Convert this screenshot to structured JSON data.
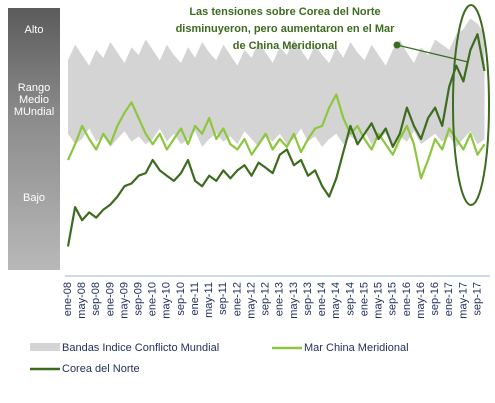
{
  "chart_data": {
    "type": "line",
    "annotation": [
      "Las tensiones sobre Corea del Norte",
      "disminuyeron, pero aumentaron en el Mar",
      "de  China Meridional"
    ],
    "zones": [
      "Alto",
      "Rango Medio MUndial",
      "Bajo"
    ],
    "categories": [
      "ene-08",
      null,
      "may-08",
      null,
      "sep-08",
      null,
      "ene-09",
      null,
      "may-09",
      null,
      "sep-09",
      null,
      "ene-10",
      null,
      "may-10",
      null,
      "sep-10",
      null,
      "ene-11",
      null,
      "may-11",
      null,
      "sep-11",
      null,
      "ene-12",
      null,
      "may-12",
      null,
      "sep-12",
      null,
      "ene-13",
      null,
      "may-13",
      null,
      "sep-13",
      null,
      "ene-14",
      null,
      "may-14",
      null,
      "sep-14",
      null,
      "ene-15",
      null,
      "may-15",
      null,
      "sep-15",
      null,
      "ene-16",
      null,
      "may-16",
      null,
      "sep-16",
      null,
      "ene-17",
      null,
      "may-17",
      null,
      "sep-17",
      null
    ],
    "ylim": [
      0,
      100
    ],
    "band": {
      "name": "Bandas Indice Conflicto Mundial",
      "color": "#d4d4d4",
      "low": [
        52,
        48,
        50,
        54,
        49,
        51,
        47,
        50,
        53,
        49,
        51,
        48,
        50,
        54,
        49,
        52,
        48,
        50,
        53,
        47,
        50,
        52,
        49,
        51,
        48,
        53,
        50,
        47,
        51,
        49,
        52,
        48,
        50,
        54,
        49,
        51,
        47,
        50,
        52,
        48,
        51,
        49,
        53,
        48,
        50,
        52,
        47,
        51,
        49,
        53,
        48,
        50,
        52,
        49,
        51,
        47,
        50,
        53,
        48,
        50
      ],
      "high": [
        80,
        86,
        82,
        78,
        84,
        81,
        87,
        83,
        79,
        85,
        82,
        88,
        84,
        80,
        86,
        82,
        79,
        85,
        81,
        87,
        83,
        80,
        86,
        82,
        78,
        84,
        81,
        87,
        83,
        79,
        85,
        82,
        88,
        84,
        80,
        86,
        82,
        79,
        85,
        81,
        87,
        83,
        80,
        86,
        82,
        78,
        84,
        88,
        83,
        79,
        85,
        82,
        88,
        86,
        84,
        90,
        92,
        96,
        94,
        90
      ]
    },
    "series": [
      {
        "name": "Mar China Meridional",
        "color": "#8dc63f",
        "values": [
          42,
          48,
          55,
          50,
          46,
          52,
          48,
          55,
          60,
          64,
          58,
          52,
          48,
          52,
          46,
          50,
          54,
          48,
          55,
          52,
          58,
          50,
          54,
          48,
          46,
          50,
          44,
          48,
          52,
          46,
          50,
          47,
          52,
          45,
          50,
          54,
          55,
          62,
          67,
          58,
          52,
          55,
          50,
          46,
          52,
          48,
          44,
          50,
          55,
          48,
          35,
          42,
          50,
          46,
          54,
          50,
          46,
          52,
          44,
          48
        ]
      },
      {
        "name": "Corea del Norte",
        "color": "#3d6b1f",
        "values": [
          9,
          24,
          19,
          22,
          20,
          23,
          25,
          28,
          32,
          33,
          36,
          37,
          42,
          38,
          36,
          34,
          37,
          42,
          34,
          32,
          36,
          34,
          38,
          35,
          38,
          40,
          36,
          41,
          39,
          37,
          44,
          46,
          40,
          42,
          36,
          38,
          32,
          28,
          35,
          45,
          55,
          48,
          52,
          56,
          50,
          54,
          47,
          52,
          62,
          55,
          50,
          58,
          62,
          55,
          70,
          78,
          72,
          84,
          90,
          76
        ]
      }
    ]
  }
}
